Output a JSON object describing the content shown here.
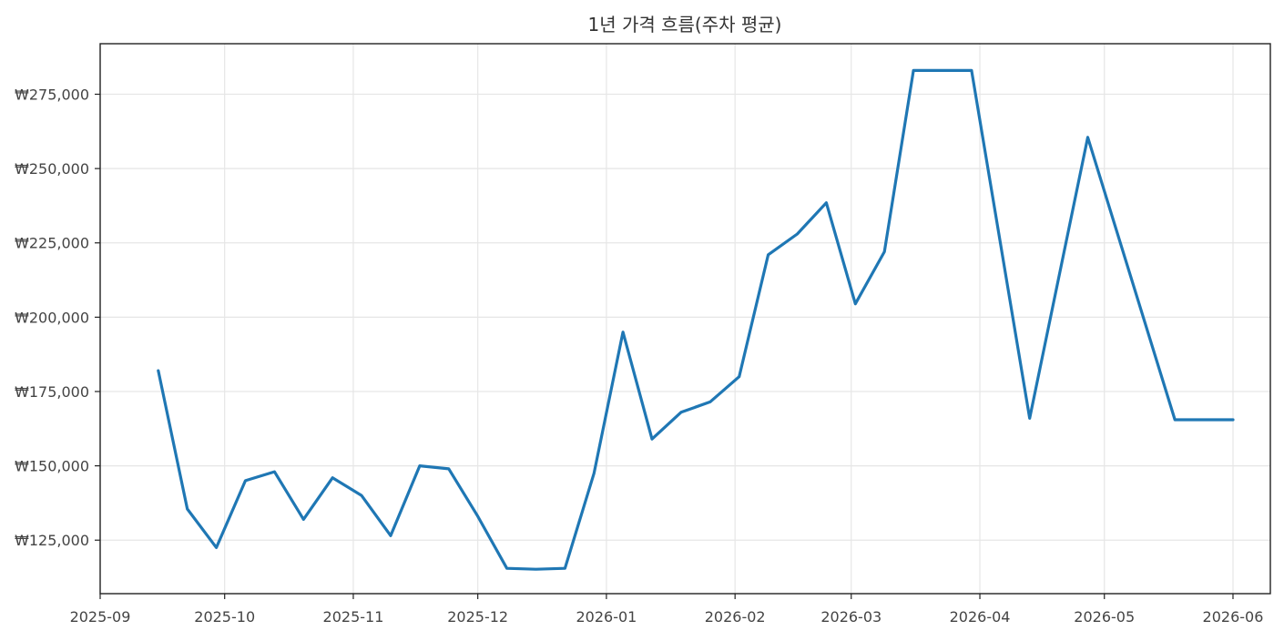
{
  "chart_data": {
    "type": "line",
    "title": "1년 가격 흐름(주차 평균)",
    "xlabel": "",
    "ylabel": "",
    "x_ticks": [
      "2025-09",
      "2025-10",
      "2025-11",
      "2025-12",
      "2026-01",
      "2026-02",
      "2026-03",
      "2026-04",
      "2026-05",
      "2026-06"
    ],
    "y_ticks": [
      125000,
      150000,
      175000,
      200000,
      225000,
      250000,
      275000
    ],
    "y_tick_labels": [
      "₩125,000",
      "₩150,000",
      "₩175,000",
      "₩200,000",
      "₩225,000",
      "₩250,000",
      "₩275,000"
    ],
    "xlim": [
      "2025-09-01",
      "2026-06-10"
    ],
    "ylim": [
      107000,
      292000
    ],
    "grid": true,
    "colors": {
      "series": "#1f77b4"
    },
    "series": [
      {
        "x": [
          "2025-09-15",
          "2025-09-22",
          "2025-09-29",
          "2025-10-06",
          "2025-10-13",
          "2025-10-20",
          "2025-10-27",
          "2025-11-03",
          "2025-11-10",
          "2025-11-17",
          "2025-11-24",
          "2025-12-01",
          "2025-12-08",
          "2025-12-15",
          "2025-12-22",
          "2025-12-29",
          "2026-01-05",
          "2026-01-12",
          "2026-01-19",
          "2026-01-26",
          "2026-02-02",
          "2026-02-09",
          "2026-02-16",
          "2026-02-23",
          "2026-03-02",
          "2026-03-09",
          "2026-03-16",
          "2026-03-23",
          "2026-03-30",
          "2026-04-13",
          "2026-04-27",
          "2026-05-18",
          "2026-05-25",
          "2026-06-01"
        ],
        "values": [
          182000,
          135500,
          122500,
          145000,
          148000,
          132000,
          146000,
          140000,
          126500,
          150000,
          149000,
          133000,
          115500,
          115200,
          115500,
          147500,
          195000,
          159000,
          168000,
          171500,
          180000,
          221000,
          228000,
          238500,
          204500,
          222000,
          283000,
          283000,
          283000,
          166000,
          260500,
          165500,
          165500,
          165500
        ]
      }
    ]
  }
}
